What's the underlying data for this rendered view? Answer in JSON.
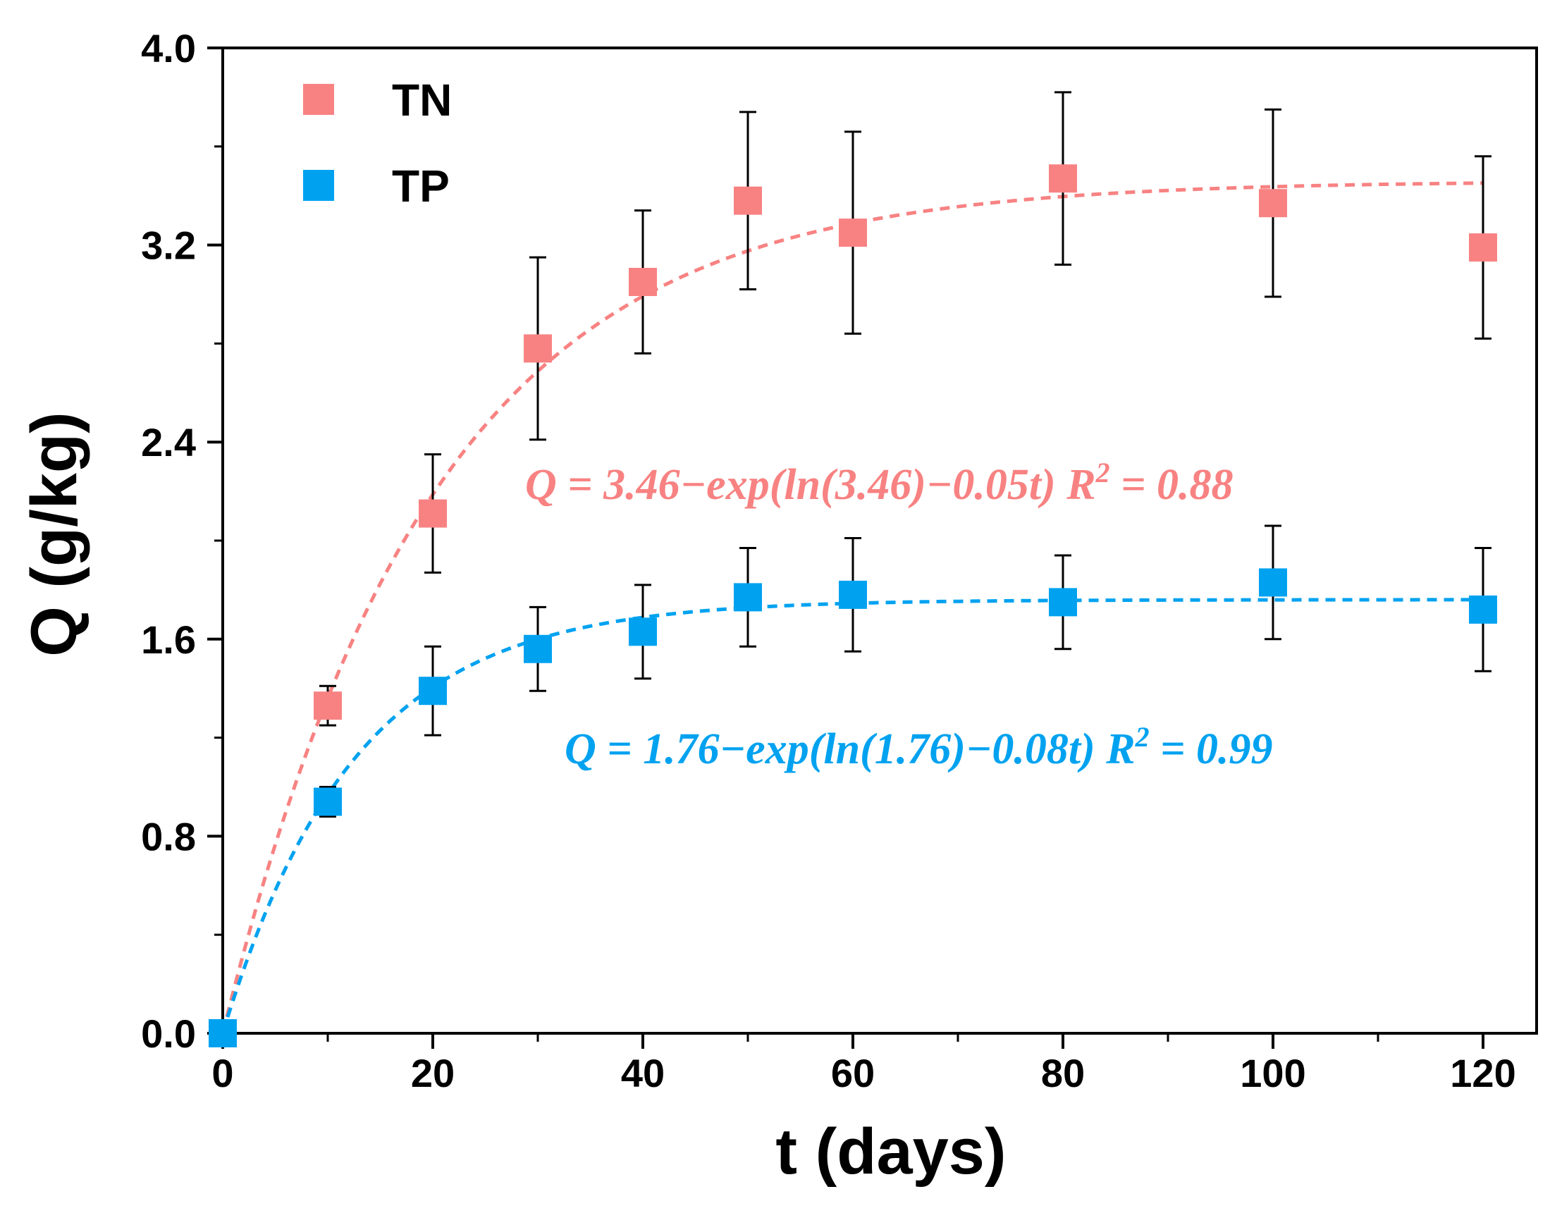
{
  "chart_data": {
    "type": "scatter",
    "title": "",
    "xlabel": "t (days)",
    "ylabel": "Q (g/kg)",
    "xlim": [
      0,
      125
    ],
    "ylim": [
      0,
      4.0
    ],
    "xticks": [
      0,
      20,
      40,
      60,
      80,
      100,
      120
    ],
    "xtick_labels": [
      "0",
      "20",
      "40",
      "60",
      "80",
      "100",
      "120"
    ],
    "yticks": [
      0,
      0.8,
      1.6,
      2.4,
      3.2,
      4.0
    ],
    "ytick_labels": [
      "0.0",
      "0.8",
      "1.6",
      "2.4",
      "3.2",
      "4.0"
    ],
    "grid": false,
    "legend_position": "top-left",
    "series": [
      {
        "name": "TN",
        "color": "#f88282",
        "x": [
          0,
          10,
          20,
          30,
          40,
          50,
          60,
          80,
          100,
          120
        ],
        "y": [
          0.0,
          1.33,
          2.11,
          2.78,
          3.05,
          3.38,
          3.25,
          3.47,
          3.37,
          3.19
        ],
        "err": [
          0.0,
          0.08,
          0.24,
          0.37,
          0.29,
          0.36,
          0.41,
          0.35,
          0.38,
          0.37
        ],
        "fit": {
          "a": 3.46,
          "k": 0.05,
          "tmax": 120
        },
        "equation": {
          "main": "Q = 3.46−exp(ln(3.46)−0.05t)  R",
          "sup": "2",
          "tail": " = 0.88"
        }
      },
      {
        "name": "TP",
        "color": "#00a2f0",
        "x": [
          0,
          10,
          20,
          30,
          40,
          50,
          60,
          80,
          100,
          120
        ],
        "y": [
          0.0,
          0.94,
          1.39,
          1.56,
          1.63,
          1.77,
          1.78,
          1.75,
          1.83,
          1.72
        ],
        "err": [
          0.0,
          0.06,
          0.18,
          0.17,
          0.19,
          0.2,
          0.23,
          0.19,
          0.23,
          0.25
        ],
        "fit": {
          "a": 1.76,
          "k": 0.08,
          "tmax": 120
        },
        "equation": {
          "main": "Q = 1.76−exp(ln(1.76)−0.08t)  R",
          "sup": "2",
          "tail": " = 0.99"
        }
      }
    ]
  }
}
